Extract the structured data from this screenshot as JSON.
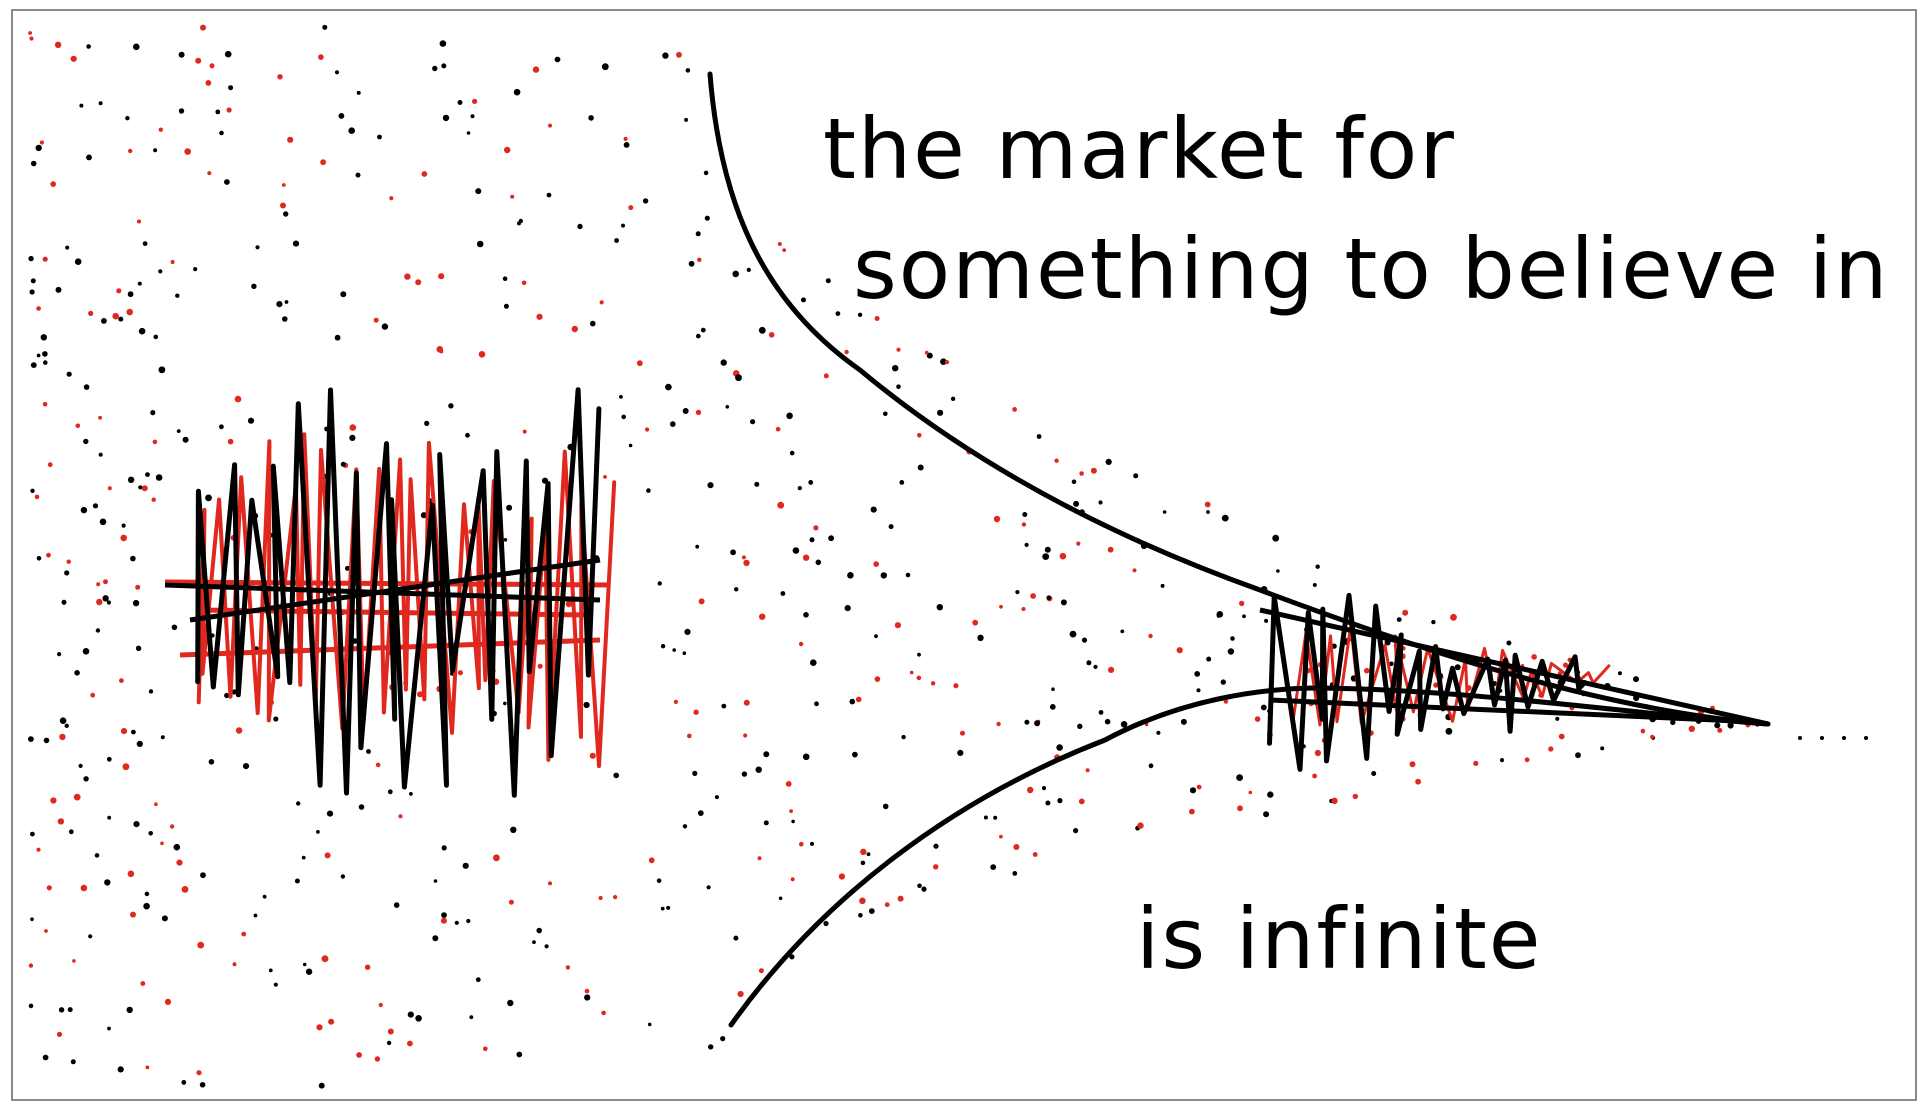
{
  "text": {
    "line1": "the market for",
    "line2": "something to believe in",
    "line3": "is infinite"
  }
}
